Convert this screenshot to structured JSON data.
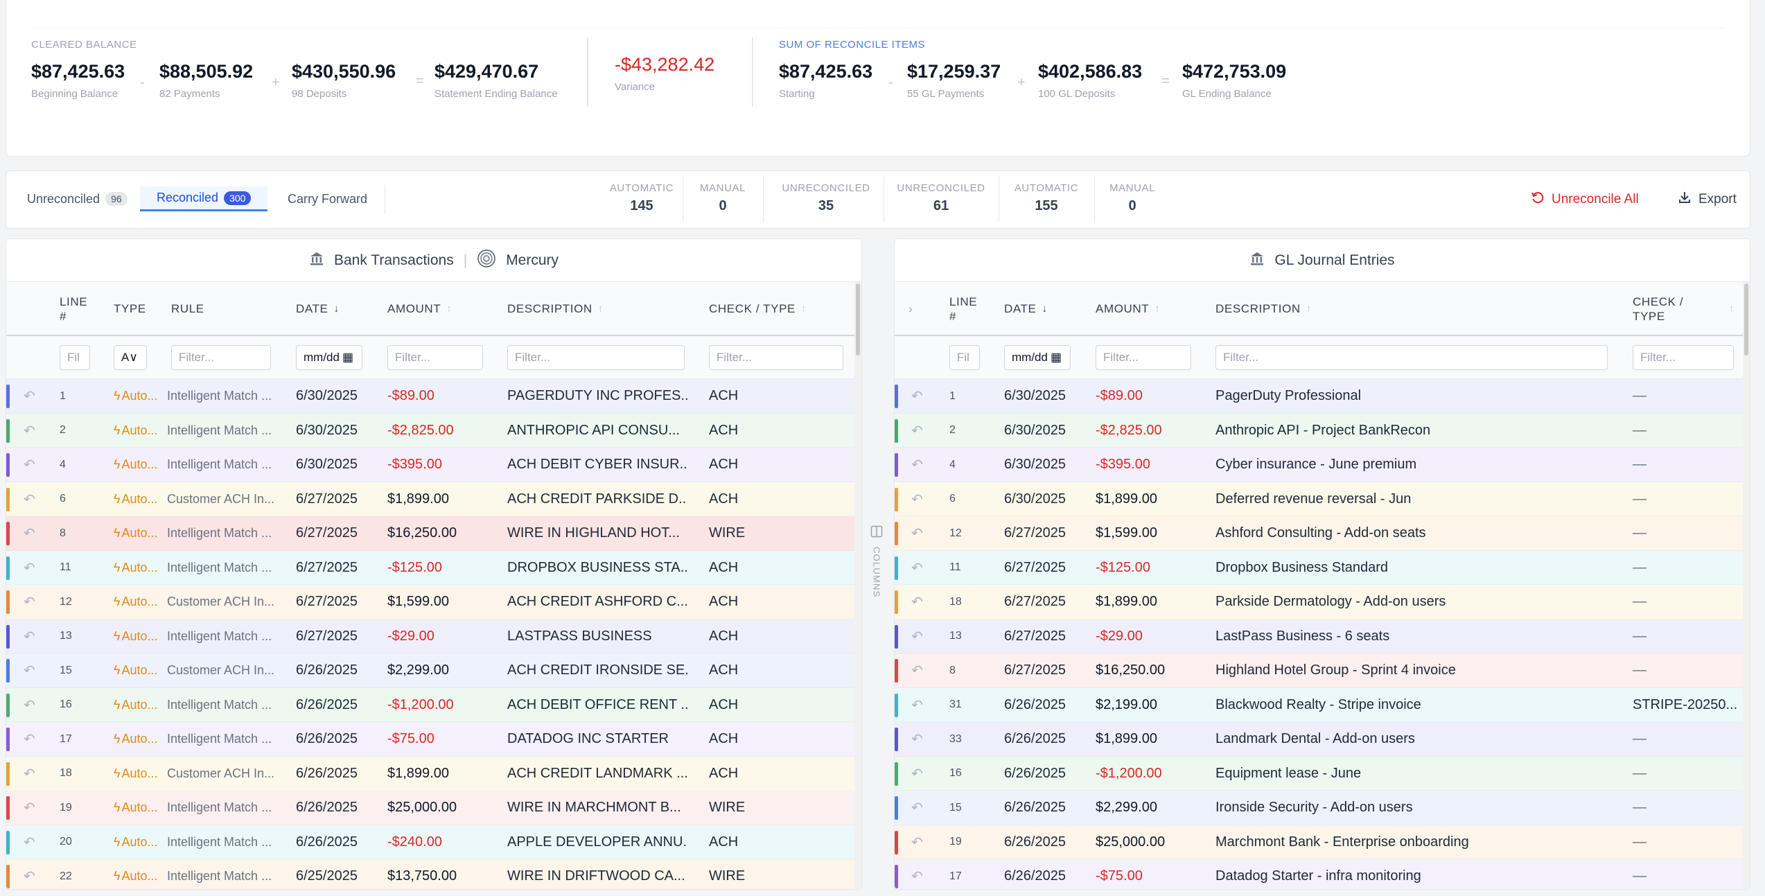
{
  "summary": {
    "cleared_label": "CLEARED BALANCE",
    "cleared": [
      {
        "value": "$87,425.63",
        "label": "Beginning Balance"
      },
      {
        "value": "$88,505.92",
        "label": "82 Payments"
      },
      {
        "value": "$430,550.96",
        "label": "98 Deposits"
      },
      {
        "value": "$429,470.67",
        "label": "Statement Ending Balance"
      }
    ],
    "operators": [
      "-",
      "+",
      "="
    ],
    "variance": {
      "value": "-$43,282.42",
      "label": "Variance"
    },
    "reconcile_label": "SUM OF RECONCILE ITEMS",
    "reconcile": [
      {
        "value": "$87,425.63",
        "label": "Starting"
      },
      {
        "value": "$17,259.37",
        "label": "55 GL Payments"
      },
      {
        "value": "$402,586.83",
        "label": "100 GL Deposits"
      },
      {
        "value": "$472,753.09",
        "label": "GL Ending Balance"
      }
    ]
  },
  "tabs": [
    {
      "label": "Unreconciled",
      "count": "96"
    },
    {
      "label": "Reconciled",
      "count": "300"
    },
    {
      "label": "Carry Forward",
      "count": ""
    }
  ],
  "stats": [
    {
      "label": "AUTOMATIC",
      "value": "145"
    },
    {
      "label": "MANUAL",
      "value": "0"
    },
    {
      "label": "UNRECONCILED",
      "value": "35"
    },
    {
      "label": "UNRECONCILED",
      "value": "61"
    },
    {
      "label": "AUTOMATIC",
      "value": "155"
    },
    {
      "label": "MANUAL",
      "value": "0"
    }
  ],
  "actions": {
    "unreconcile_all": "Unreconcile All",
    "export": "Export"
  },
  "bank": {
    "title": "Bank Transactions",
    "account": "Mercury",
    "headers": {
      "line": "LINE #",
      "type": "TYPE",
      "rule": "RULE",
      "date": "DATE",
      "amount": "AMOUNT",
      "description": "DESCRIPTION",
      "check": "CHECK / TYPE"
    },
    "filters": {
      "line": "Fil",
      "type": "A∨",
      "rule": "Filter...",
      "date": "mm/dd",
      "amount": "Filter...",
      "description": "Filter...",
      "check": "Filter..."
    },
    "rows": [
      {
        "line": "1",
        "type": "Auto...",
        "rule": "Intelligent Match ...",
        "date": "6/30/2025",
        "amount": "-$89.00",
        "desc": "PAGERDUTY INC PROFES...",
        "check": "ACH",
        "color": "#5b6ee1",
        "bg": "#eef1fc",
        "neg": true
      },
      {
        "line": "2",
        "type": "Auto...",
        "rule": "Intelligent Match ...",
        "date": "6/30/2025",
        "amount": "-$2,825.00",
        "desc": "ANTHROPIC API CONSU...",
        "check": "ACH",
        "color": "#49a86b",
        "bg": "#edf8f1",
        "neg": true
      },
      {
        "line": "4",
        "type": "Auto...",
        "rule": "Intelligent Match ...",
        "date": "6/30/2025",
        "amount": "-$395.00",
        "desc": "ACH DEBIT CYBER INSUR...",
        "check": "ACH",
        "color": "#7c5cd6",
        "bg": "#f3f0fc",
        "neg": true
      },
      {
        "line": "6",
        "type": "Auto...",
        "rule": "Customer ACH In...",
        "date": "6/27/2025",
        "amount": "$1,899.00",
        "desc": "ACH CREDIT PARKSIDE D...",
        "check": "ACH",
        "color": "#e3a33a",
        "bg": "#fdf9ea",
        "neg": false
      },
      {
        "line": "8",
        "type": "Auto...",
        "rule": "Intelligent Match ...",
        "date": "6/27/2025",
        "amount": "$16,250.00",
        "desc": "WIRE IN HIGHLAND HOT...",
        "check": "WIRE",
        "color": "#d9474b",
        "bg": "#fbe4e4",
        "neg": false
      },
      {
        "line": "11",
        "type": "Auto...",
        "rule": "Intelligent Match ...",
        "date": "6/27/2025",
        "amount": "-$125.00",
        "desc": "DROPBOX BUSINESS STA...",
        "check": "ACH",
        "color": "#3fb3c7",
        "bg": "#ecf9fb",
        "neg": true
      },
      {
        "line": "12",
        "type": "Auto...",
        "rule": "Customer ACH In...",
        "date": "6/27/2025",
        "amount": "$1,599.00",
        "desc": "ACH CREDIT ASHFORD C...",
        "check": "ACH",
        "color": "#e8883a",
        "bg": "#fdf4ea",
        "neg": false
      },
      {
        "line": "13",
        "type": "Auto...",
        "rule": "Intelligent Match ...",
        "date": "6/27/2025",
        "amount": "-$29.00",
        "desc": "LASTPASS BUSINESS",
        "check": "ACH",
        "color": "#5a55d6",
        "bg": "#efeffb",
        "neg": true
      },
      {
        "line": "15",
        "type": "Auto...",
        "rule": "Customer ACH In...",
        "date": "6/26/2025",
        "amount": "$2,299.00",
        "desc": "ACH CREDIT IRONSIDE SE...",
        "check": "ACH",
        "color": "#4f7be0",
        "bg": "#eef2fc",
        "neg": false
      },
      {
        "line": "16",
        "type": "Auto...",
        "rule": "Intelligent Match ...",
        "date": "6/26/2025",
        "amount": "-$1,200.00",
        "desc": "ACH DEBIT OFFICE RENT ...",
        "check": "ACH",
        "color": "#4caa6e",
        "bg": "#edf8f1",
        "neg": true
      },
      {
        "line": "17",
        "type": "Auto...",
        "rule": "Intelligent Match ...",
        "date": "6/26/2025",
        "amount": "-$75.00",
        "desc": "DATADOG INC STARTER",
        "check": "ACH",
        "color": "#8a5ad6",
        "bg": "#f4f0fc",
        "neg": true
      },
      {
        "line": "18",
        "type": "Auto...",
        "rule": "Customer ACH In...",
        "date": "6/26/2025",
        "amount": "$1,899.00",
        "desc": "ACH CREDIT LANDMARK ...",
        "check": "ACH",
        "color": "#e3a33a",
        "bg": "#fdf9ea",
        "neg": false
      },
      {
        "line": "19",
        "type": "Auto...",
        "rule": "Intelligent Match ...",
        "date": "6/26/2025",
        "amount": "$25,000.00",
        "desc": "WIRE IN MARCHMONT B...",
        "check": "WIRE",
        "color": "#d9474b",
        "bg": "#fcefef",
        "neg": false
      },
      {
        "line": "20",
        "type": "Auto...",
        "rule": "Intelligent Match ...",
        "date": "6/26/2025",
        "amount": "-$240.00",
        "desc": "APPLE DEVELOPER ANNU...",
        "check": "ACH",
        "color": "#3fb3c7",
        "bg": "#ecf9fb",
        "neg": true
      },
      {
        "line": "22",
        "type": "Auto...",
        "rule": "Intelligent Match ...",
        "date": "6/25/2025",
        "amount": "$13,750.00",
        "desc": "WIRE IN DRIFTWOOD CA...",
        "check": "WIRE",
        "color": "#e8883a",
        "bg": "#fdf4ea",
        "neg": false
      }
    ]
  },
  "gl": {
    "title": "GL Journal Entries",
    "headers": {
      "line": "LINE #",
      "date": "DATE",
      "amount": "AMOUNT",
      "description": "DESCRIPTION",
      "check": "CHECK / TYPE"
    },
    "filters": {
      "line": "Fil",
      "date": "mm/dd",
      "amount": "Filter...",
      "description": "Filter...",
      "check": "Filter..."
    },
    "rows": [
      {
        "line": "1",
        "date": "6/30/2025",
        "amount": "-$89.00",
        "desc": "PagerDuty Professional",
        "check": "—",
        "color": "#5b6ee1",
        "bg": "#eef1fc",
        "neg": true
      },
      {
        "line": "2",
        "date": "6/30/2025",
        "amount": "-$2,825.00",
        "desc": "Anthropic API - Project BankRecon",
        "check": "—",
        "color": "#49a86b",
        "bg": "#edf8f1",
        "neg": true
      },
      {
        "line": "4",
        "date": "6/30/2025",
        "amount": "-$395.00",
        "desc": "Cyber insurance - June premium",
        "check": "—",
        "color": "#7c5cd6",
        "bg": "#f3f0fc",
        "neg": true
      },
      {
        "line": "6",
        "date": "6/30/2025",
        "amount": "$1,899.00",
        "desc": "Deferred revenue reversal - Jun",
        "check": "—",
        "color": "#e3a33a",
        "bg": "#fdf9ea",
        "neg": false
      },
      {
        "line": "12",
        "date": "6/27/2025",
        "amount": "$1,599.00",
        "desc": "Ashford Consulting - Add-on seats",
        "check": "—",
        "color": "#e8883a",
        "bg": "#fdf4ea",
        "neg": false
      },
      {
        "line": "11",
        "date": "6/27/2025",
        "amount": "-$125.00",
        "desc": "Dropbox Business Standard",
        "check": "—",
        "color": "#3fb3c7",
        "bg": "#ecf9fb",
        "neg": true
      },
      {
        "line": "18",
        "date": "6/27/2025",
        "amount": "$1,899.00",
        "desc": "Parkside Dermatology - Add-on users",
        "check": "—",
        "color": "#e3a33a",
        "bg": "#fdf9ea",
        "neg": false
      },
      {
        "line": "13",
        "date": "6/27/2025",
        "amount": "-$29.00",
        "desc": "LastPass Business - 6 seats",
        "check": "—",
        "color": "#5a55d6",
        "bg": "#efeffb",
        "neg": true
      },
      {
        "line": "8",
        "date": "6/27/2025",
        "amount": "$16,250.00",
        "desc": "Highland Hotel Group - Sprint 4 invoice",
        "check": "—",
        "color": "#d9474b",
        "bg": "#fcefef",
        "neg": false
      },
      {
        "line": "31",
        "date": "6/26/2025",
        "amount": "$2,199.00",
        "desc": "Blackwood Realty - Stripe invoice",
        "check": "STRIPE-20250...",
        "color": "#3fb3c7",
        "bg": "#ecf9fb",
        "neg": false
      },
      {
        "line": "33",
        "date": "6/26/2025",
        "amount": "$1,899.00",
        "desc": "Landmark Dental - Add-on users",
        "check": "—",
        "color": "#5a55d6",
        "bg": "#efeffb",
        "neg": false
      },
      {
        "line": "16",
        "date": "6/26/2025",
        "amount": "-$1,200.00",
        "desc": "Equipment lease - June",
        "check": "—",
        "color": "#4caa6e",
        "bg": "#edf8f1",
        "neg": true
      },
      {
        "line": "15",
        "date": "6/26/2025",
        "amount": "$2,299.00",
        "desc": "Ironside Security - Add-on users",
        "check": "—",
        "color": "#4f7be0",
        "bg": "#eef2fc",
        "neg": false
      },
      {
        "line": "19",
        "date": "6/26/2025",
        "amount": "$25,000.00",
        "desc": "Marchmont Bank - Enterprise onboarding",
        "check": "—",
        "color": "#d9474b",
        "bg": "#fdf4ea",
        "neg": false
      },
      {
        "line": "17",
        "date": "6/26/2025",
        "amount": "-$75.00",
        "desc": "Datadog Starter - infra monitoring",
        "check": "—",
        "color": "#8a5ad6",
        "bg": "#f4f0fc",
        "neg": true
      }
    ]
  },
  "columns_label": "COLUMNS",
  "colors": {
    "accent": "#3b5bdb",
    "negative": "#dc2626",
    "auto": "#e38a17",
    "reconcile_label": "#4f7be0",
    "cleared_label": "#9ca3af"
  }
}
